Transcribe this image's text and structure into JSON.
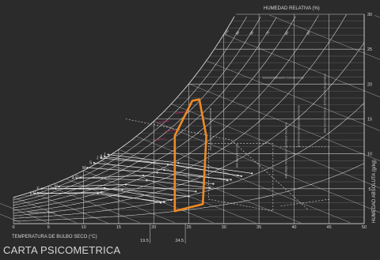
{
  "caption": "CARTA PSICOMETRICA",
  "colors": {
    "background": "#2b2b2b",
    "grid": "#d9d9d9",
    "comfort_zone": "#f08a24",
    "accent_pink": "#e0207a"
  },
  "chart_data": {
    "type": "line",
    "title": "",
    "xlabel": "TEMPERATURA DE BULBO SECO (°C)",
    "ylabel": "HUMEDAD ABSOLUTA (g/kg)",
    "top_label": "HUMEDAD RELATIVA (%)",
    "xlim": [
      0,
      50
    ],
    "ylim": [
      0,
      30
    ],
    "x_ticks": [
      0,
      5,
      10,
      15,
      20,
      25,
      30,
      35,
      40,
      45,
      50
    ],
    "y_ticks": [
      5,
      10,
      15,
      20,
      25,
      30
    ],
    "grid": true,
    "rh_labels": [
      "100",
      "90",
      "80",
      "70",
      "60",
      "50"
    ],
    "rh_curves_percent": [
      10,
      20,
      30,
      40,
      50,
      60,
      70,
      80,
      90,
      100
    ],
    "marked_temperatures": [
      "19.5",
      "24.5"
    ],
    "zone_labels": [
      "Deshumidificación Convencional",
      "Alta Inercia Térmica / Enfriamiento Evaporativo",
      "Enfriamiento Evaporativo Directo",
      "Alta Masa Térmica con Ventilación Nocturna",
      "Alta Masa Térmica",
      "Calentamiento Pasivo",
      "Aire Acondicionado Convencional"
    ],
    "series": [
      {
        "type": "area",
        "points": [
          [
            23.0,
            1.8
          ],
          [
            27.0,
            2.8
          ],
          [
            27.5,
            12.5
          ],
          [
            26.5,
            17.8
          ],
          [
            25.5,
            17.6
          ],
          [
            23.0,
            12.6
          ]
        ]
      }
    ],
    "monthly_lines": [
      {
        "label": "E",
        "points": [
          [
            3.0,
            4.3
          ],
          [
            12.5,
            4.5
          ],
          [
            21.0,
            3.0
          ]
        ]
      },
      {
        "label": "F",
        "points": [
          [
            4.0,
            5.0
          ],
          [
            13.0,
            5.1
          ],
          [
            22.5,
            3.4
          ]
        ]
      },
      {
        "label": "M",
        "points": [
          [
            6.5,
            5.3
          ],
          [
            16.0,
            5.6
          ],
          [
            26.0,
            4.6
          ]
        ]
      },
      {
        "label": "A",
        "points": [
          [
            9.0,
            6.5
          ],
          [
            18.5,
            6.9
          ],
          [
            28.5,
            5.7
          ]
        ]
      },
      {
        "label": "M",
        "points": [
          [
            10.5,
            8.0
          ],
          [
            20.5,
            7.3
          ],
          [
            31.0,
            6.3
          ]
        ]
      },
      {
        "label": "J",
        "points": [
          [
            12.5,
            9.4
          ],
          [
            22.0,
            8.5
          ],
          [
            32.5,
            6.8
          ]
        ]
      },
      {
        "label": "J",
        "points": [
          [
            13.5,
            9.9
          ],
          [
            23.5,
            8.7
          ],
          [
            34.0,
            7.2
          ]
        ]
      },
      {
        "label": "A",
        "points": [
          [
            13.0,
            9.6
          ],
          [
            23.0,
            8.4
          ],
          [
            32.0,
            6.9
          ]
        ]
      },
      {
        "label": "S",
        "points": [
          [
            11.5,
            8.7
          ],
          [
            21.5,
            7.7
          ],
          [
            30.5,
            6.2
          ]
        ]
      },
      {
        "label": "O",
        "points": [
          [
            9.5,
            6.6
          ],
          [
            19.0,
            6.2
          ],
          [
            28.0,
            5.1
          ]
        ]
      },
      {
        "label": "N",
        "points": [
          [
            6.0,
            5.0
          ],
          [
            15.5,
            4.9
          ],
          [
            25.0,
            3.9
          ]
        ]
      },
      {
        "label": "D",
        "points": [
          [
            3.5,
            4.4
          ],
          [
            12.0,
            4.3
          ],
          [
            21.5,
            3.1
          ]
        ]
      }
    ]
  }
}
